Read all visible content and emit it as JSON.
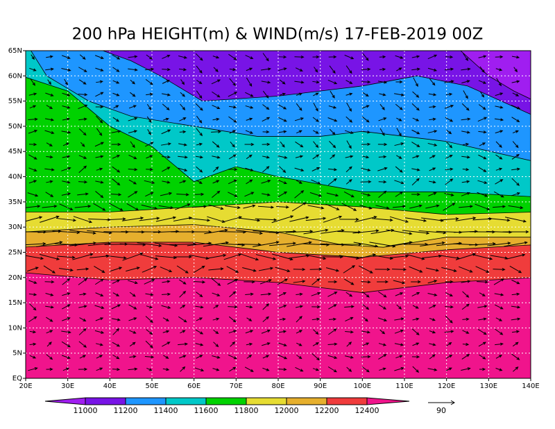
{
  "title": "200 hPa HEIGHT(m) & WIND(m/s) 17-FEB-2019 00Z",
  "latitude_labels": [
    "EQ",
    "5N",
    "10N",
    "15N",
    "20N",
    "25N",
    "30N",
    "35N",
    "40N",
    "45N",
    "50N",
    "55N",
    "60N",
    "65N"
  ],
  "longitude_labels": [
    "20E",
    "30E",
    "40E",
    "50E",
    "60E",
    "70E",
    "80E",
    "90E",
    "100E",
    "110E",
    "120E",
    "130E",
    "140E"
  ],
  "colorbar": {
    "levels": [
      11000,
      11200,
      11400,
      11600,
      11800,
      12000,
      12200,
      12400
    ],
    "colors": [
      "#a01ef0",
      "#7814e6",
      "#1e96ff",
      "#00c8c8",
      "#00d200",
      "#e6dc32",
      "#e6af2d",
      "#f03c3c",
      "#f0148c"
    ]
  },
  "reference_vector": {
    "label": "90"
  }
}
